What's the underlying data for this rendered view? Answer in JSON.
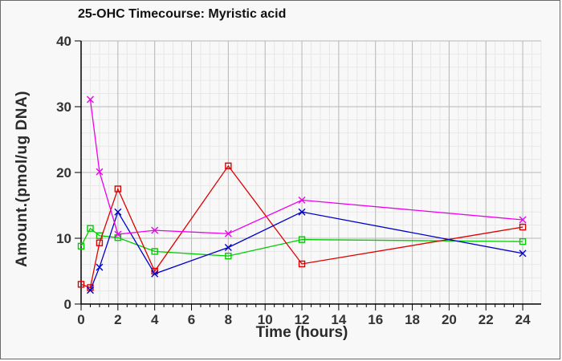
{
  "window": {
    "background": "#f8f8f8",
    "border_color": "#6a6a6a"
  },
  "chart_data": {
    "type": "line",
    "title": "25-OHC Timecourse: Myristic acid",
    "xlabel": "Time (hours)",
    "ylabel": "Amount.(pmol/ug DNA)",
    "x": [
      0,
      0.5,
      1,
      2,
      4,
      8,
      12,
      24
    ],
    "series": [
      {
        "name": "green-squares",
        "color": "#00cc00",
        "marker": "square",
        "values": [
          8.8,
          11.5,
          10.4,
          10.1,
          8.0,
          7.3,
          9.8,
          9.5
        ]
      },
      {
        "name": "red-squares",
        "color": "#dd0000",
        "marker": "square",
        "values": [
          3.0,
          2.5,
          9.3,
          17.5,
          5.0,
          21.0,
          6.1,
          11.7
        ]
      },
      {
        "name": "blue-x",
        "color": "#0000cc",
        "marker": "x",
        "values": [
          null,
          2.1,
          5.6,
          14.0,
          4.6,
          8.6,
          14.0,
          7.7
        ]
      },
      {
        "name": "magenta-x",
        "color": "#ee00ee",
        "marker": "x",
        "values": [
          null,
          31.1,
          20.1,
          10.6,
          11.2,
          10.7,
          15.8,
          12.8
        ]
      }
    ],
    "xlim": [
      0,
      25
    ],
    "ylim": [
      0,
      40
    ],
    "xticks": [
      0,
      2,
      4,
      6,
      8,
      10,
      12,
      14,
      16,
      18,
      20,
      22,
      24
    ],
    "yticks": [
      0,
      10,
      20,
      30,
      40
    ],
    "x_minor_step": 0.5,
    "y_minor_step": 2,
    "grid": true,
    "legend": false,
    "grid_minor_color": "#e7e7e7",
    "grid_major_color": "#b9b9b9",
    "axis_color": "#000000",
    "tick_label_color": "#333333"
  }
}
